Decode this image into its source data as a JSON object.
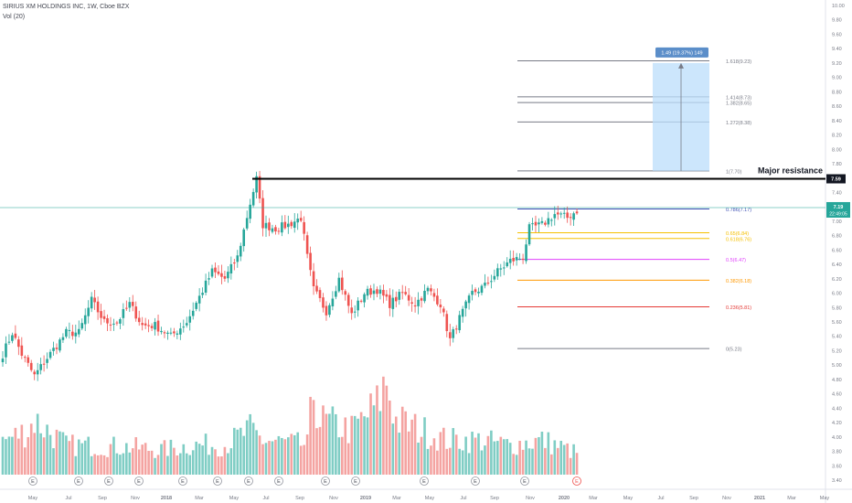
{
  "header": {
    "title": "SIRIUS XM HOLDINGS INC, 1W, Cboe BZX",
    "volume_label": "Vol (20)"
  },
  "colors": {
    "up": "#26a69a",
    "down": "#ef5350",
    "volume_up": "#7fcdc4",
    "volume_down": "#f4a3a1",
    "resistance": "#000000",
    "current_price_line": "#26a69a",
    "projection_box": "#bbdefb",
    "projection_label_bg": "#5b8ec9"
  },
  "chart_data": {
    "type": "candlestick",
    "title": "SIRIUS XM HOLDINGS INC, 1W, Cboe BZX",
    "price_axis": {
      "ylim": [
        3.5,
        10.1
      ],
      "ticks": [
        "10.00",
        "9.80",
        "9.60",
        "9.40",
        "9.20",
        "9.00",
        "8.80",
        "8.60",
        "8.40",
        "8.20",
        "8.00",
        "7.80",
        "7.60",
        "7.40",
        "7.20",
        "7.00",
        "6.80",
        "6.60",
        "6.40",
        "6.20",
        "6.00",
        "5.80",
        "5.60",
        "5.40",
        "5.20",
        "5.00",
        "4.80",
        "4.60",
        "4.40",
        "4.20",
        "4.00",
        "3.80",
        "3.60",
        "3.40"
      ]
    },
    "time_axis": {
      "labels": [
        "May",
        "Jul",
        "Sep",
        "Nov",
        "2018",
        "Mar",
        "May",
        "Jul",
        "Sep",
        "Nov",
        "2019",
        "Mar",
        "May",
        "Jul",
        "Sep",
        "Nov",
        "2020",
        "Mar",
        "May",
        "Jul",
        "Sep",
        "Nov",
        "2021",
        "Mar",
        "May"
      ]
    },
    "price_key_points": [
      [
        0,
        5.15
      ],
      [
        3,
        5.45
      ],
      [
        6,
        5.15
      ],
      [
        10,
        4.85
      ],
      [
        14,
        5.1
      ],
      [
        20,
        5.45
      ],
      [
        24,
        5.45
      ],
      [
        28,
        5.9
      ],
      [
        32,
        5.6
      ],
      [
        36,
        5.6
      ],
      [
        40,
        5.85
      ],
      [
        44,
        5.55
      ],
      [
        48,
        5.55
      ],
      [
        53,
        5.4
      ],
      [
        58,
        5.6
      ],
      [
        62,
        5.95
      ],
      [
        66,
        6.3
      ],
      [
        70,
        6.2
      ],
      [
        74,
        6.5
      ],
      [
        78,
        7.25
      ],
      [
        80,
        7.59
      ],
      [
        82,
        6.95
      ],
      [
        86,
        6.9
      ],
      [
        90,
        6.95
      ],
      [
        94,
        7.05
      ],
      [
        96,
        6.5
      ],
      [
        98,
        6.05
      ],
      [
        102,
        5.75
      ],
      [
        106,
        6.2
      ],
      [
        110,
        5.7
      ],
      [
        114,
        6.0
      ],
      [
        118,
        6.05
      ],
      [
        122,
        5.85
      ],
      [
        126,
        6.0
      ],
      [
        130,
        5.85
      ],
      [
        134,
        6.05
      ],
      [
        138,
        5.85
      ],
      [
        141,
        5.35
      ],
      [
        144,
        5.65
      ],
      [
        148,
        6.0
      ],
      [
        152,
        6.1
      ],
      [
        156,
        6.3
      ],
      [
        160,
        6.45
      ],
      [
        164,
        6.5
      ],
      [
        166,
        6.9
      ],
      [
        170,
        6.95
      ],
      [
        174,
        7.1
      ],
      [
        178,
        7.05
      ],
      [
        181,
        7.15
      ]
    ],
    "volume_key_points": [
      [
        0,
        0.34
      ],
      [
        8,
        0.45
      ],
      [
        10,
        0.55
      ],
      [
        20,
        0.3
      ],
      [
        40,
        0.28
      ],
      [
        50,
        0.25
      ],
      [
        60,
        0.3
      ],
      [
        70,
        0.3
      ],
      [
        78,
        0.45
      ],
      [
        82,
        0.35
      ],
      [
        96,
        0.3
      ],
      [
        98,
        0.85
      ],
      [
        100,
        0.55
      ],
      [
        110,
        0.45
      ],
      [
        118,
        0.7
      ],
      [
        121,
        0.95
      ],
      [
        124,
        0.55
      ],
      [
        140,
        0.35
      ],
      [
        150,
        0.35
      ],
      [
        160,
        0.3
      ],
      [
        170,
        0.35
      ],
      [
        181,
        0.22
      ]
    ],
    "earnings_markers": [
      "E",
      "E",
      "E",
      "E",
      "E",
      "E",
      "E",
      "E",
      "E",
      "E",
      "E",
      "E",
      "E",
      "E"
    ],
    "fib_levels": [
      {
        "label": "0(5.23)",
        "value": 5.23,
        "color": "#787b86"
      },
      {
        "label": "0.236(5.81)",
        "value": 5.81,
        "color": "#e53935"
      },
      {
        "label": "0.382(6.18)",
        "value": 6.18,
        "color": "#ff9800"
      },
      {
        "label": "0.5(6.47)",
        "value": 6.47,
        "color": "#e040fb"
      },
      {
        "label": "0.618(6.76)",
        "value": 6.76,
        "color": "#f5c000"
      },
      {
        "label": "0.65(6.84)",
        "value": 6.84,
        "color": "#f5c000"
      },
      {
        "label": "0.786(7.17)",
        "value": 7.17,
        "color": "#3f51b5"
      },
      {
        "label": "1(7.70)",
        "value": 7.7,
        "color": "#787b86"
      },
      {
        "label": "1.272(8.38)",
        "value": 8.38,
        "color": "#787b86"
      },
      {
        "label": "1.382(8.65)",
        "value": 8.65,
        "color": "#787b86"
      },
      {
        "label": "1.414(8.73)",
        "value": 8.73,
        "color": "#787b86"
      },
      {
        "label": "1.618(9.23)",
        "value": 9.23,
        "color": "#787b86"
      }
    ],
    "resistance": {
      "value": 7.59,
      "label": "Major resistance",
      "price_label": "7.59"
    },
    "current_price": {
      "value": 7.19,
      "label": "7.19",
      "countdown": "22:49:05"
    },
    "projection": {
      "label": "1.49 (19.37%) 149",
      "from": 7.7,
      "to": 9.2
    }
  }
}
